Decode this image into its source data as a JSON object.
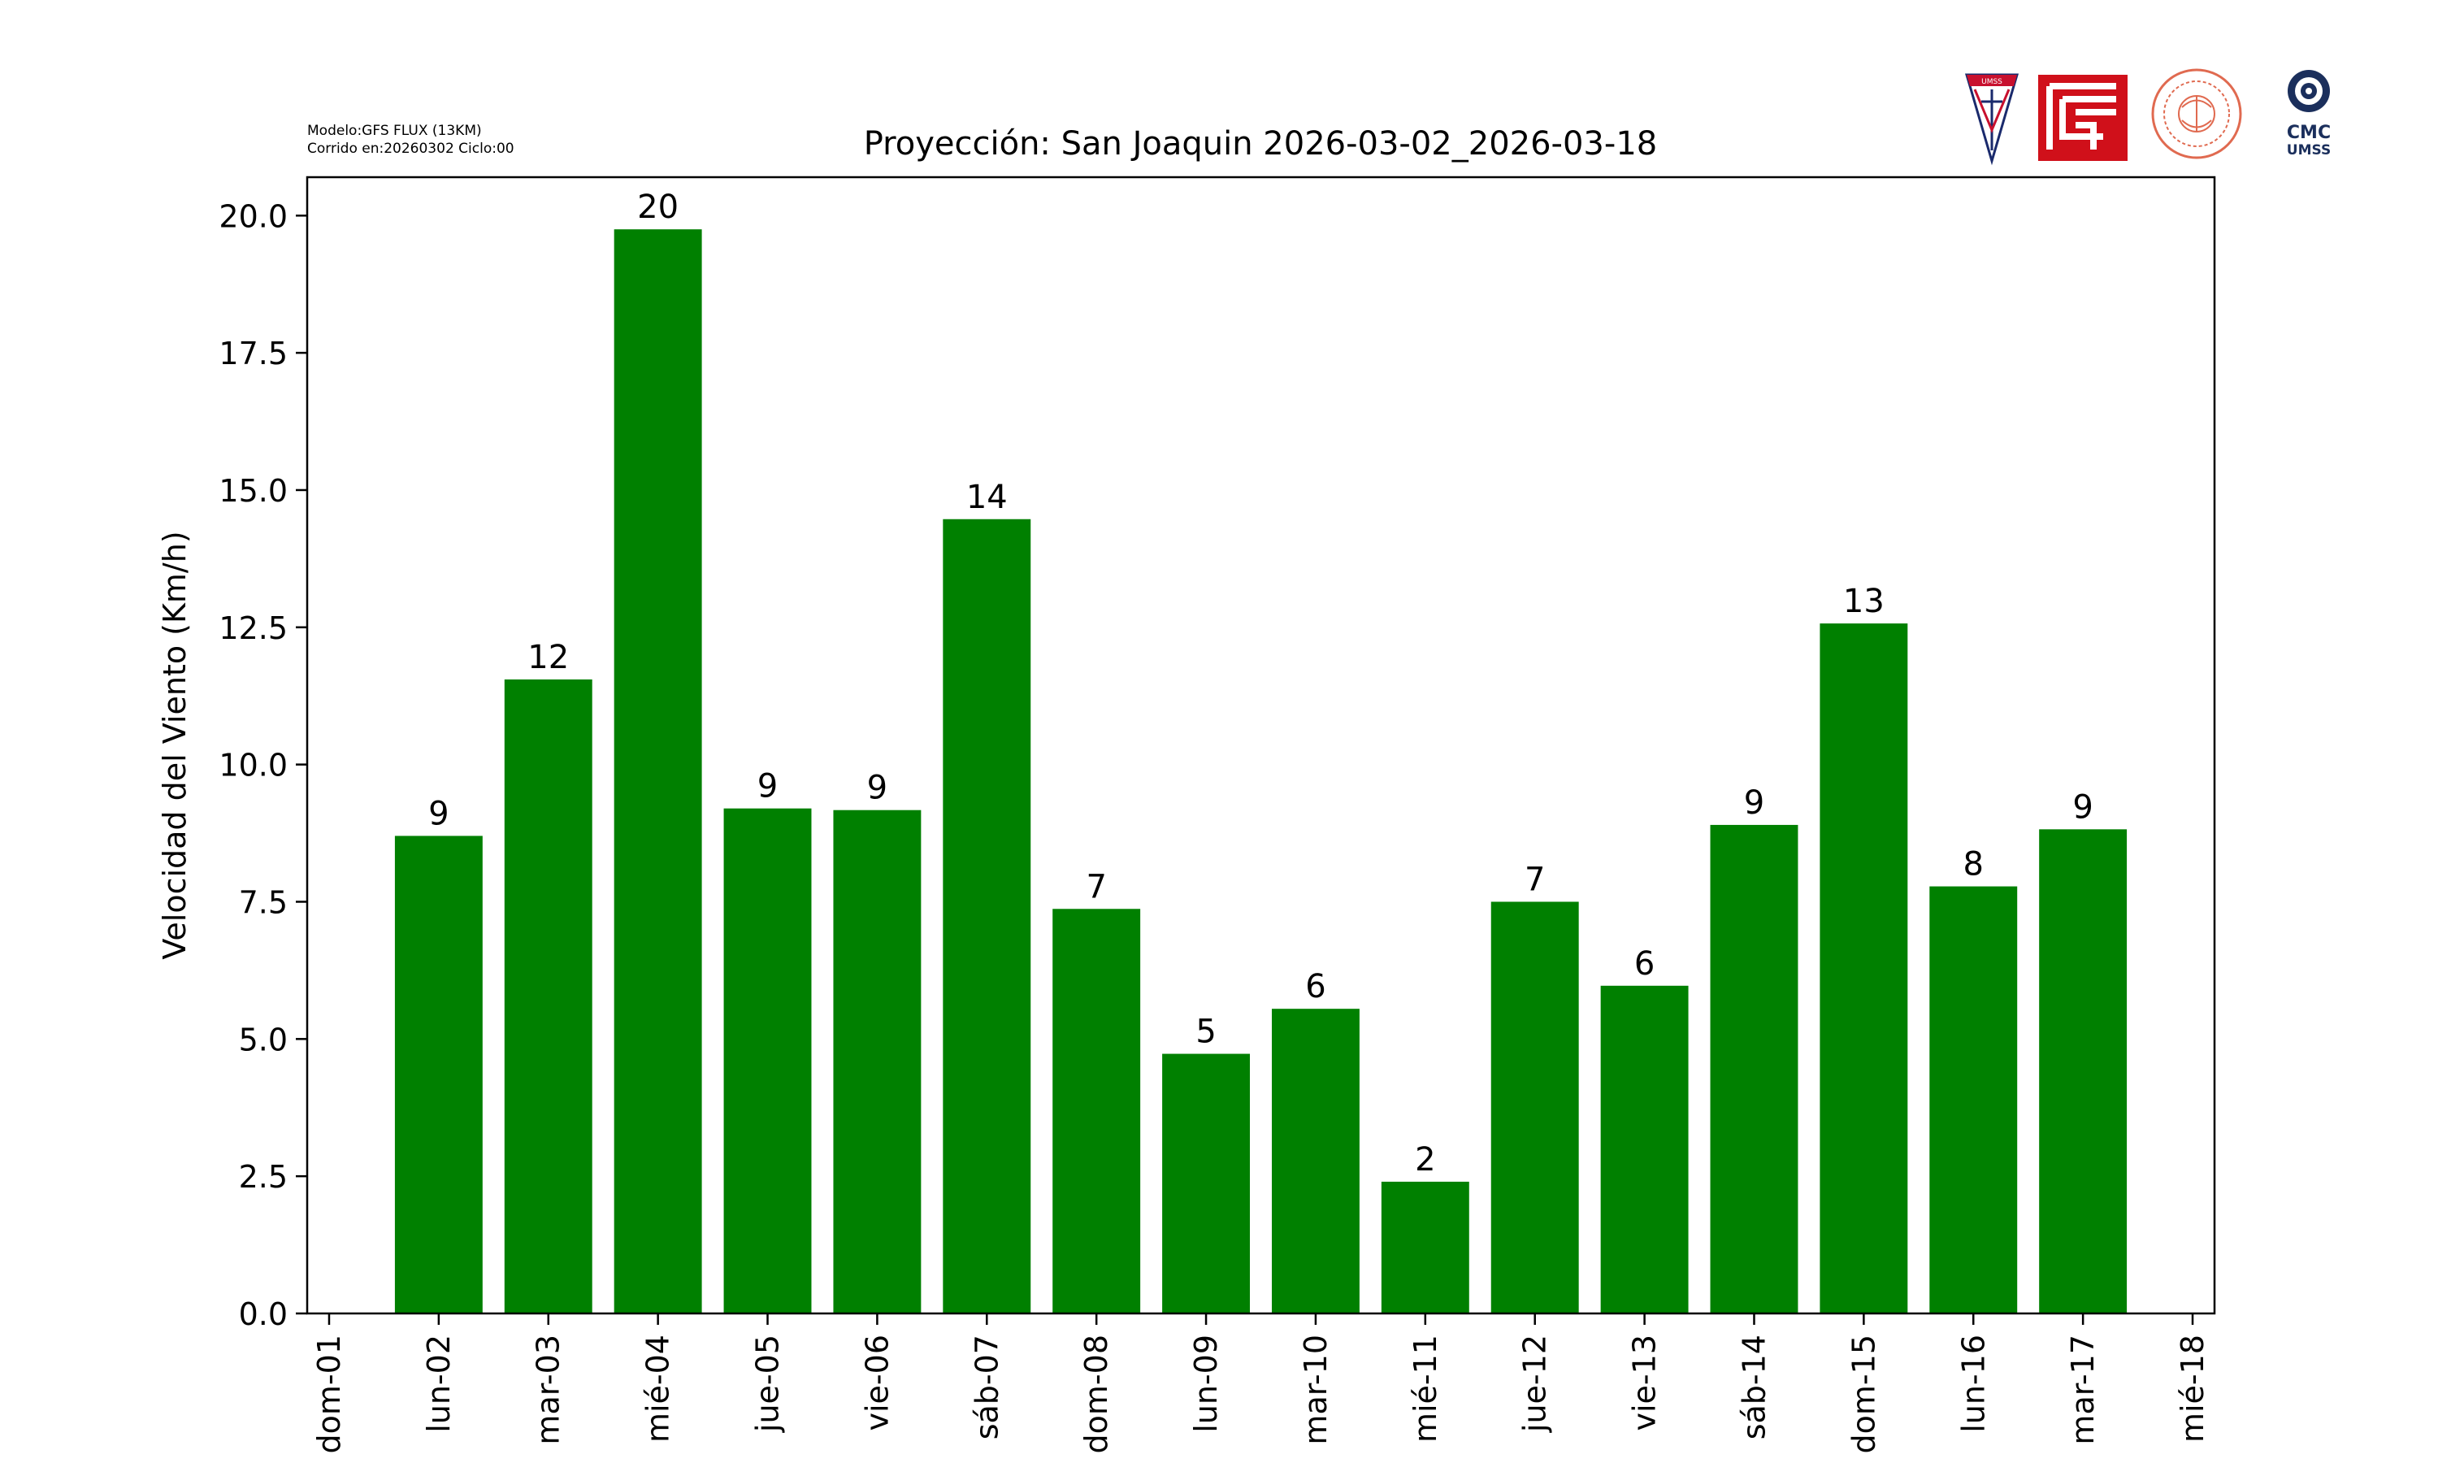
{
  "header": {
    "model_line": "Modelo:GFS FLUX (13KM)",
    "run_line": "Corrido en:20260302 Ciclo:00",
    "logo_text_cmc": "CMC",
    "logo_text_umss": "UMSS",
    "logo_text_shield": "UMSS"
  },
  "chart_data": {
    "type": "bar",
    "title": "Proyección: San Joaquin  2026-03-02_2026-03-18",
    "xlabel": "",
    "ylabel": "Velocidad del Viento (Km/h)",
    "ylim": [
      0,
      20.7
    ],
    "yticks": [
      "0.0",
      "2.5",
      "5.0",
      "7.5",
      "10.0",
      "12.5",
      "15.0",
      "17.5",
      "20.0"
    ],
    "xticks": [
      "dom-01",
      "lun-02",
      "mar-03",
      "mié-04",
      "jue-05",
      "vie-06",
      "sáb-07",
      "dom-08",
      "lun-09",
      "mar-10",
      "mié-11",
      "jue-12",
      "vie-13",
      "sáb-14",
      "dom-15",
      "lun-16",
      "mar-17",
      "mié-18"
    ],
    "categories": [
      "lun-02",
      "mar-03",
      "mié-04",
      "jue-05",
      "vie-06",
      "sáb-07",
      "dom-08",
      "lun-09",
      "mar-10",
      "mié-11",
      "jue-12",
      "vie-13",
      "sáb-14",
      "dom-15",
      "lun-16",
      "mar-17"
    ],
    "values": [
      8.7,
      11.55,
      19.75,
      9.2,
      9.17,
      14.47,
      7.37,
      4.73,
      5.55,
      2.4,
      7.5,
      5.97,
      8.9,
      12.57,
      7.78,
      8.82
    ],
    "labels": [
      "9",
      "12",
      "20",
      "9",
      "9",
      "14",
      "7",
      "5",
      "6",
      "2",
      "7",
      "6",
      "9",
      "13",
      "8",
      "9"
    ],
    "bar_color": "#008000",
    "grid": false,
    "legend": "none"
  }
}
